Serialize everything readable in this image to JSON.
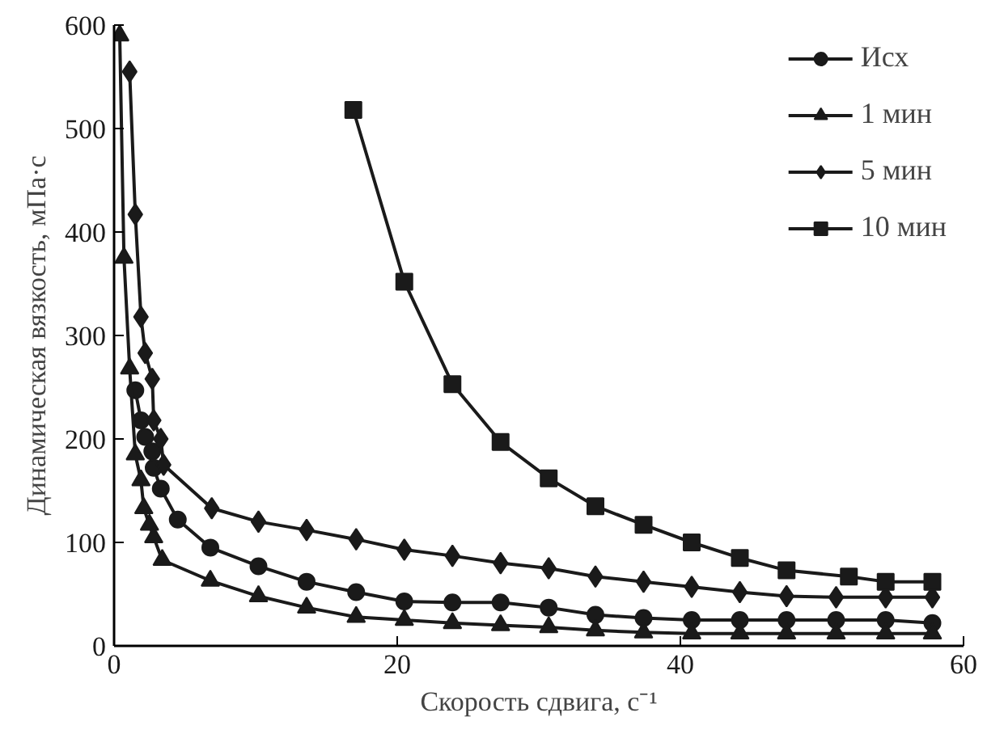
{
  "chart_data": {
    "type": "line",
    "xlabel": "Скорость сдвига, с⁻¹",
    "ylabel": "Динамическая вязкость, мПа·с",
    "xlim": [
      0,
      60
    ],
    "ylim": [
      0,
      600
    ],
    "xticks": [
      0,
      20,
      40,
      60
    ],
    "yticks": [
      0,
      100,
      200,
      300,
      400,
      500,
      600
    ],
    "grid": false,
    "legend": "top right",
    "line_style": "solid",
    "series": [
      {
        "name": "Исх",
        "color": "#1a1a1a",
        "marker": "circle",
        "x": [
          1.5,
          1.9,
          2.2,
          2.7,
          2.8,
          3.3,
          4.5,
          6.8,
          10.2,
          13.6,
          17.1,
          20.5,
          23.9,
          27.3,
          30.7,
          34,
          37.4,
          40.8,
          44.2,
          47.5,
          51,
          54.5,
          57.8
        ],
        "values": [
          247,
          218,
          202,
          188,
          172,
          152,
          122,
          95,
          77,
          62,
          52,
          43,
          42,
          42,
          37,
          30,
          27,
          25,
          25,
          25,
          25,
          25,
          22
        ]
      },
      {
        "name": "1 мин",
        "color": "#1a1a1a",
        "marker": "triangle",
        "x": [
          0.4,
          0.7,
          1.1,
          1.5,
          1.9,
          2.1,
          2.5,
          2.8,
          3.4,
          6.8,
          10.2,
          13.6,
          17.1,
          20.5,
          23.9,
          27.3,
          30.7,
          34,
          37.4,
          40.8,
          44.2,
          47.5,
          51,
          54.5,
          57.8
        ],
        "values": [
          590,
          375,
          268,
          185,
          160,
          133,
          117,
          105,
          83,
          63,
          48,
          37,
          28,
          25,
          22,
          20,
          18,
          15,
          13,
          12,
          12,
          12,
          12,
          12,
          12
        ]
      },
      {
        "name": "5 мин",
        "color": "#1a1a1a",
        "marker": "diamond",
        "x": [
          1.1,
          1.5,
          1.9,
          2.2,
          2.7,
          2.8,
          3.3,
          3.5,
          6.9,
          10.2,
          13.6,
          17.1,
          20.5,
          23.9,
          27.3,
          30.7,
          34,
          37.4,
          40.8,
          44.2,
          47.5,
          51,
          54.5,
          57.8
        ],
        "values": [
          555,
          417,
          318,
          283,
          258,
          218,
          200,
          175,
          133,
          120,
          112,
          103,
          93,
          87,
          80,
          75,
          67,
          62,
          57,
          52,
          48,
          47,
          47,
          47
        ]
      },
      {
        "name": "10 мин",
        "color": "#1a1a1a",
        "marker": "square",
        "x": [
          16.9,
          20.5,
          23.9,
          27.3,
          30.7,
          34,
          37.4,
          40.8,
          44.2,
          47.5,
          51.9,
          54.5,
          57.8
        ],
        "values": [
          518,
          352,
          253,
          197,
          162,
          135,
          117,
          100,
          85,
          73,
          67,
          62,
          62
        ]
      }
    ]
  }
}
